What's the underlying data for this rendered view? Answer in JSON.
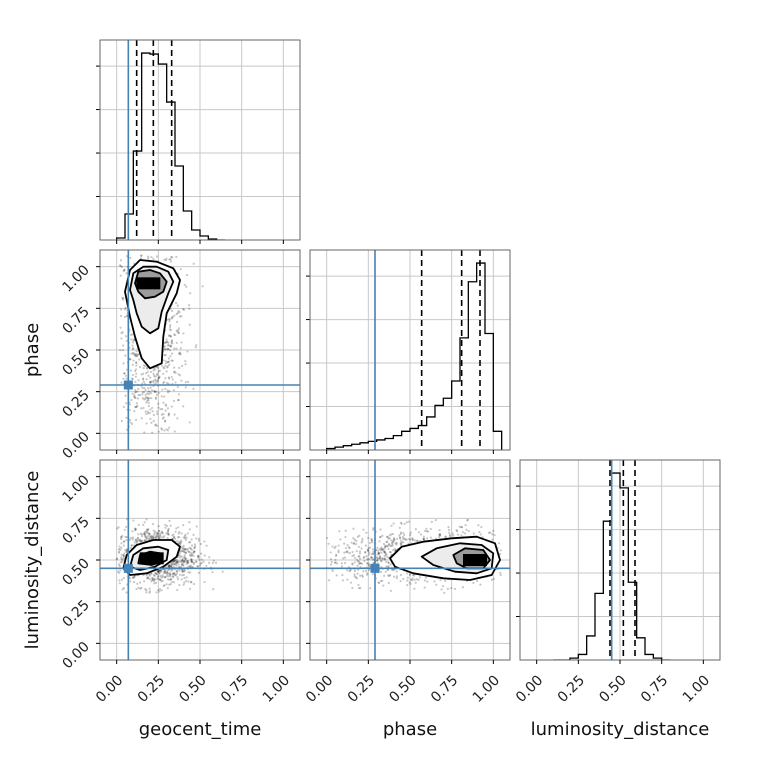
{
  "chart_data": {
    "type": "corner",
    "parameters": [
      "geocent_time",
      "phase",
      "luminosity_distance"
    ],
    "axis_range": [
      -0.1,
      1.1
    ],
    "ticks": [
      0.0,
      0.25,
      0.5,
      0.75,
      1.0
    ],
    "tick_labels": [
      "0.00",
      "0.25",
      "0.50",
      "0.75",
      "1.00"
    ],
    "grid": true,
    "truth_color": "#4682b4",
    "truths": {
      "geocent_time": 0.07,
      "phase": 0.29,
      "luminosity_distance": 0.45
    },
    "quantiles": {
      "geocent_time": [
        0.12,
        0.22,
        0.33
      ],
      "phase": [
        0.57,
        0.81,
        0.92
      ],
      "luminosity_distance": [
        0.44,
        0.52,
        0.59
      ]
    },
    "histograms": {
      "geocent_time": {
        "bin_edges": [
          0.0,
          0.05,
          0.1,
          0.15,
          0.2,
          0.25,
          0.3,
          0.35,
          0.4,
          0.45,
          0.5,
          0.55,
          0.6,
          0.65
        ],
        "counts": [
          2,
          26,
          89,
          187,
          186,
          176,
          138,
          74,
          29,
          10,
          4,
          1,
          0
        ]
      },
      "phase": {
        "bin_edges": [
          0.0,
          0.05,
          0.1,
          0.15,
          0.2,
          0.25,
          0.3,
          0.35,
          0.4,
          0.45,
          0.5,
          0.55,
          0.6,
          0.65,
          0.7,
          0.75,
          0.8,
          0.85,
          0.9,
          0.95,
          1.0,
          1.05
        ],
        "counts": [
          1,
          2,
          3,
          4,
          5,
          6,
          7,
          8,
          10,
          13,
          15,
          17,
          23,
          31,
          36,
          48,
          78,
          117,
          130,
          81,
          13
        ]
      },
      "luminosity_distance": {
        "bin_edges": [
          0.1,
          0.15,
          0.2,
          0.25,
          0.3,
          0.35,
          0.4,
          0.45,
          0.5,
          0.55,
          0.6,
          0.65,
          0.7,
          0.75,
          0.8
        ],
        "counts": [
          0,
          0,
          1,
          3,
          13,
          36,
          75,
          101,
          93,
          42,
          12,
          3,
          1,
          0
        ]
      }
    },
    "joint": [
      {
        "x": "geocent_time",
        "y": "phase",
        "mode": [
          0.19,
          0.9
        ],
        "scatter_center": [
          0.2,
          0.62
        ],
        "scatter_sd": [
          0.1,
          0.33
        ],
        "x_clip": [
          0.02,
          0.75
        ],
        "y_clip": [
          0.0,
          1.07
        ],
        "contours": [
          [
            [
              0.05,
              0.85
            ],
            [
              0.08,
              0.98
            ],
            [
              0.14,
              1.04
            ],
            [
              0.24,
              1.03
            ],
            [
              0.34,
              0.99
            ],
            [
              0.38,
              0.92
            ],
            [
              0.36,
              0.84
            ],
            [
              0.3,
              0.72
            ],
            [
              0.28,
              0.58
            ],
            [
              0.27,
              0.42
            ],
            [
              0.2,
              0.39
            ],
            [
              0.15,
              0.45
            ],
            [
              0.11,
              0.58
            ],
            [
              0.08,
              0.7
            ]
          ],
          [
            [
              0.08,
              0.86
            ],
            [
              0.1,
              0.96
            ],
            [
              0.16,
              1.0
            ],
            [
              0.24,
              1.0
            ],
            [
              0.31,
              0.97
            ],
            [
              0.34,
              0.91
            ],
            [
              0.31,
              0.84
            ],
            [
              0.27,
              0.73
            ],
            [
              0.25,
              0.63
            ],
            [
              0.2,
              0.6
            ],
            [
              0.15,
              0.64
            ],
            [
              0.12,
              0.72
            ],
            [
              0.1,
              0.8
            ]
          ],
          [
            [
              0.11,
              0.9
            ],
            [
              0.13,
              0.97
            ],
            [
              0.2,
              0.98
            ],
            [
              0.26,
              0.96
            ],
            [
              0.3,
              0.91
            ],
            [
              0.28,
              0.85
            ],
            [
              0.23,
              0.82
            ],
            [
              0.17,
              0.81
            ],
            [
              0.13,
              0.85
            ]
          ]
        ]
      },
      {
        "x": "geocent_time",
        "y": "luminosity_distance",
        "mode": [
          0.21,
          0.51
        ],
        "scatter_center": [
          0.24,
          0.52
        ],
        "scatter_sd": [
          0.12,
          0.09
        ],
        "x_clip": [
          0.0,
          0.75
        ],
        "y_clip": [
          0.3,
          0.75
        ],
        "contours": [
          [
            [
              0.04,
              0.45
            ],
            [
              0.06,
              0.53
            ],
            [
              0.12,
              0.59
            ],
            [
              0.22,
              0.62
            ],
            [
              0.33,
              0.62
            ],
            [
              0.38,
              0.58
            ],
            [
              0.36,
              0.52
            ],
            [
              0.28,
              0.46
            ],
            [
              0.18,
              0.42
            ],
            [
              0.08,
              0.41
            ]
          ],
          [
            [
              0.08,
              0.46
            ],
            [
              0.1,
              0.53
            ],
            [
              0.16,
              0.57
            ],
            [
              0.25,
              0.58
            ],
            [
              0.31,
              0.56
            ],
            [
              0.3,
              0.5
            ],
            [
              0.23,
              0.46
            ],
            [
              0.14,
              0.44
            ]
          ],
          [
            [
              0.13,
              0.48
            ],
            [
              0.14,
              0.53
            ],
            [
              0.2,
              0.55
            ],
            [
              0.26,
              0.54
            ],
            [
              0.27,
              0.49
            ],
            [
              0.21,
              0.47
            ]
          ]
        ]
      },
      {
        "x": "phase",
        "y": "luminosity_distance",
        "mode": [
          0.89,
          0.5
        ],
        "scatter_center": [
          0.6,
          0.52
        ],
        "scatter_sd": [
          0.3,
          0.08
        ],
        "x_clip": [
          0.0,
          1.05
        ],
        "y_clip": [
          0.3,
          0.75
        ],
        "contours": [
          [
            [
              0.38,
              0.51
            ],
            [
              0.45,
              0.58
            ],
            [
              0.58,
              0.61
            ],
            [
              0.75,
              0.63
            ],
            [
              0.9,
              0.64
            ],
            [
              1.01,
              0.6
            ],
            [
              1.04,
              0.5
            ],
            [
              0.99,
              0.41
            ],
            [
              0.86,
              0.38
            ],
            [
              0.7,
              0.39
            ],
            [
              0.52,
              0.42
            ],
            [
              0.41,
              0.46
            ]
          ],
          [
            [
              0.57,
              0.52
            ],
            [
              0.66,
              0.57
            ],
            [
              0.8,
              0.6
            ],
            [
              0.93,
              0.59
            ],
            [
              1.0,
              0.54
            ],
            [
              0.99,
              0.45
            ],
            [
              0.9,
              0.42
            ],
            [
              0.77,
              0.43
            ],
            [
              0.64,
              0.47
            ]
          ],
          [
            [
              0.76,
              0.53
            ],
            [
              0.83,
              0.57
            ],
            [
              0.94,
              0.56
            ],
            [
              0.98,
              0.5
            ],
            [
              0.94,
              0.45
            ],
            [
              0.84,
              0.45
            ],
            [
              0.78,
              0.48
            ]
          ]
        ]
      }
    ]
  }
}
